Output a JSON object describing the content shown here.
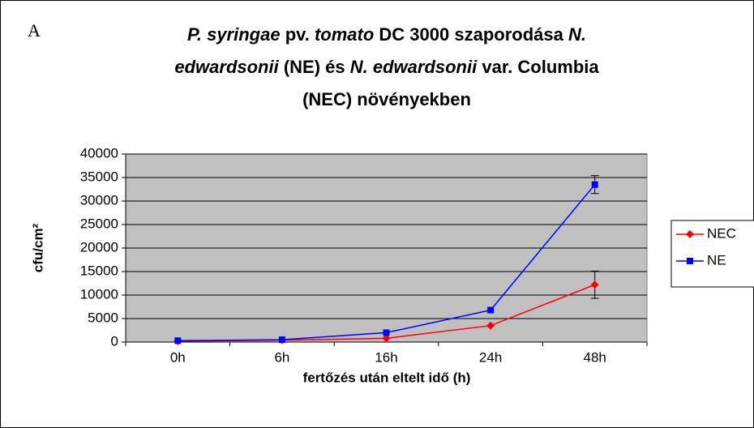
{
  "chart_data": {
    "type": "line",
    "panel_label": "A",
    "title": [
      [
        {
          "text": "P. syringae",
          "italic": true
        },
        {
          "text": " pv. ",
          "italic": false
        },
        {
          "text": "tomato",
          "italic": true
        },
        {
          "text": " DC 3000 szaporodása ",
          "italic": false
        },
        {
          "text": "N.",
          "italic": true
        }
      ],
      [
        {
          "text": "edwardsonii",
          "italic": true
        },
        {
          "text": " (NE) és ",
          "italic": false
        },
        {
          "text": "N. edwardsonii",
          "italic": true
        },
        {
          "text": " var. Columbia",
          "italic": false
        }
      ],
      [
        {
          "text": "(NEC) növényekben",
          "italic": false
        }
      ]
    ],
    "x_label": "fertőzés után eltelt idő (h)",
    "y_label": "cfu/cm²",
    "categories": [
      "0h",
      "6h",
      "16h",
      "24h",
      "48h"
    ],
    "series": [
      {
        "name": "NEC",
        "color": "#ff0000",
        "marker": "diamond",
        "values": [
          200,
          400,
          800,
          3500,
          12200
        ],
        "errors": [
          null,
          null,
          null,
          null,
          2900
        ]
      },
      {
        "name": "NE",
        "color": "#0000ff",
        "marker": "square",
        "values": [
          300,
          500,
          2000,
          6800,
          33500
        ],
        "errors": [
          null,
          null,
          null,
          null,
          1900
        ]
      }
    ],
    "ylim": [
      0,
      40000
    ],
    "yticks": [
      0,
      5000,
      10000,
      15000,
      20000,
      25000,
      30000,
      35000,
      40000
    ],
    "grid": true,
    "legend": "right"
  }
}
